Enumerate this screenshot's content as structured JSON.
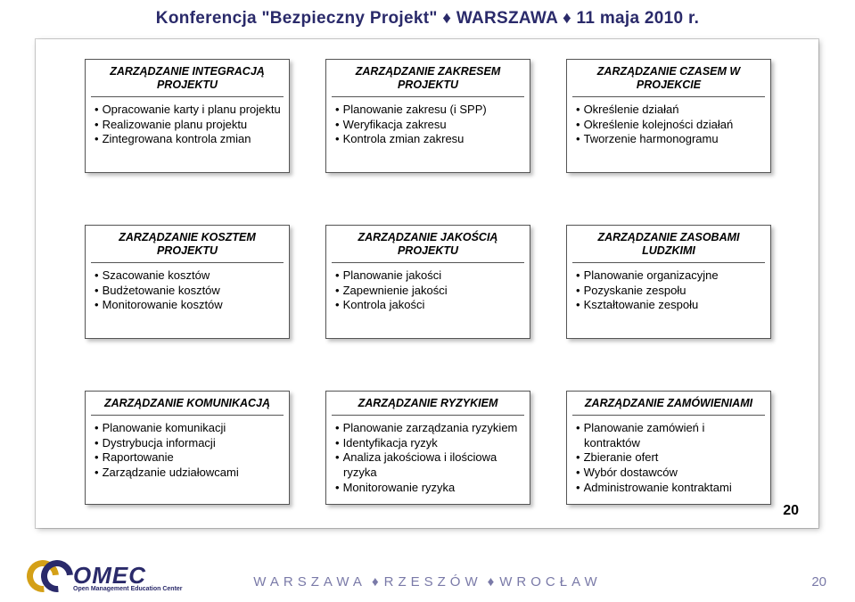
{
  "header": {
    "text": "Konferencja \"Bezpieczny Projekt\" ♦ WARSZAWA ♦ 11 maja 2010 r."
  },
  "rows": [
    [
      {
        "title": "ZARZĄDZANIE INTEGRACJĄ PROJEKTU",
        "items": [
          "Opracowanie karty i planu projektu",
          "Realizowanie planu projektu",
          "Zintegrowana kontrola zmian"
        ]
      },
      {
        "title": "ZARZĄDZANIE ZAKRESEM PROJEKTU",
        "items": [
          "Planowanie zakresu (i SPP)",
          "Weryfikacja zakresu",
          "Kontrola zmian zakresu"
        ]
      },
      {
        "title": "ZARZĄDZANIE CZASEM W  PROJEKCIE",
        "items": [
          "Określenie działań",
          "Określenie kolejności działań",
          "Tworzenie harmonogramu"
        ]
      }
    ],
    [
      {
        "title": "ZARZĄDZANIE KOSZTEM PROJEKTU",
        "items": [
          "Szacowanie kosztów",
          "Budżetowanie kosztów",
          "Monitorowanie kosztów"
        ]
      },
      {
        "title": "ZARZĄDZANIE JAKOŚCIĄ PROJEKTU",
        "items": [
          "Planowanie jakości",
          "Zapewnienie jakości",
          "Kontrola jakości"
        ]
      },
      {
        "title": "ZARZĄDZANIE ZASOBAMI LUDZKIMI",
        "items": [
          "Planowanie organizacyjne",
          "Pozyskanie zespołu",
          "Kształtowanie zespołu"
        ]
      }
    ],
    [
      {
        "title": "ZARZĄDZANIE KOMUNIKACJĄ",
        "items": [
          "Planowanie komunikacji",
          "Dystrybucja informacji",
          "Raportowanie",
          "Zarządzanie udziałowcami"
        ]
      },
      {
        "title": "ZARZĄDZANIE RYZYKIEM",
        "items": [
          "Planowanie zarządzania ryzykiem",
          "Identyfikacja ryzyk",
          "Analiza jakościowa i ilościowa ryzyka",
          "Monitorowanie ryzyka"
        ]
      },
      {
        "title": "ZARZĄDZANIE ZAMÓWIENIAMI",
        "items": [
          "Planowanie zamówień i kontraktów",
          "Zbieranie ofert",
          "Wybór dostawców",
          "Administrowanie kontraktami"
        ]
      }
    ]
  ],
  "slide_page": "20",
  "logo": {
    "main": "OMEC",
    "sub": "Open Management Education Center"
  },
  "footer_cities": {
    "c1": "WARSZAWA",
    "c2": "RZESZÓW",
    "c3": "WROCŁAW"
  },
  "footer_page": "20",
  "colors": {
    "header_text": "#2a2a6a",
    "box_border": "#555555",
    "shadow": "rgba(0,0,0,0.25)",
    "footer_text": "#7a7aa8",
    "logo_gold": "#d4a017",
    "logo_navy": "#2a2a6a"
  }
}
